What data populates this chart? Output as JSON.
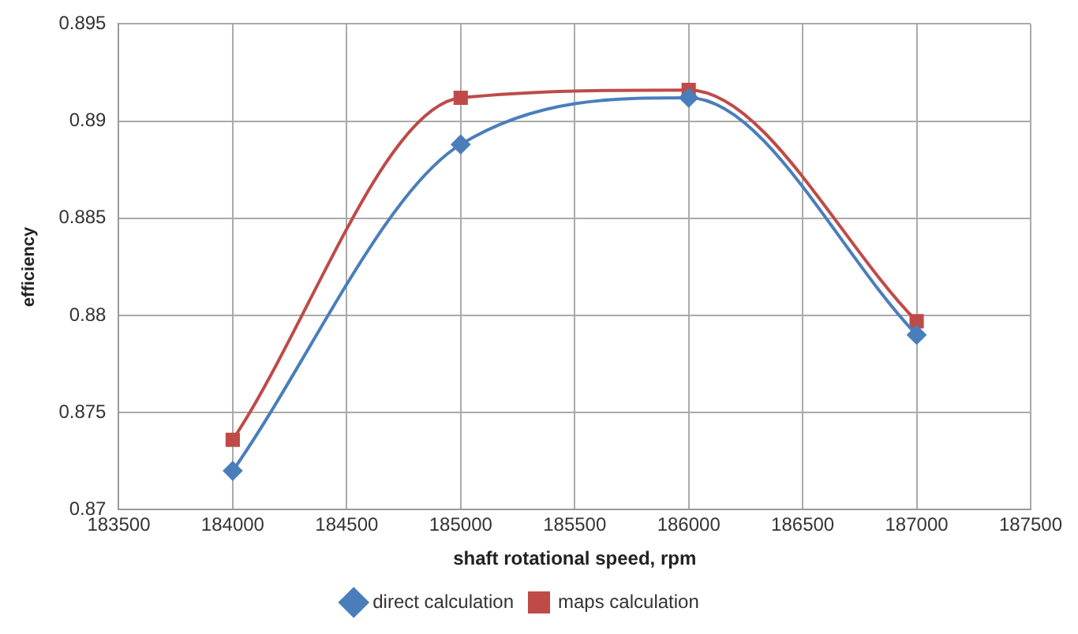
{
  "chart_data": {
    "type": "line",
    "xlabel": "shaft rotational speed, rpm",
    "ylabel": "efficiency",
    "x": [
      184000,
      185000,
      186000,
      187000
    ],
    "series": [
      {
        "name": "direct calculation",
        "color": "#4a7ebb",
        "marker": "diamond",
        "values": [
          0.872,
          0.8888,
          0.8912,
          0.879
        ]
      },
      {
        "name": "maps calculation",
        "color": "#be4b48",
        "marker": "square",
        "values": [
          0.8736,
          0.8912,
          0.8916,
          0.8797
        ]
      }
    ],
    "xlim": [
      183500,
      187500
    ],
    "xticks": [
      183500,
      184000,
      184500,
      185000,
      185500,
      186000,
      186500,
      187000,
      187500
    ],
    "ylim": [
      0.87,
      0.895
    ],
    "yticks": [
      0.87,
      0.875,
      0.88,
      0.885,
      0.89,
      0.895
    ],
    "grid": true,
    "legend": "bottom",
    "line_style": "solid"
  }
}
